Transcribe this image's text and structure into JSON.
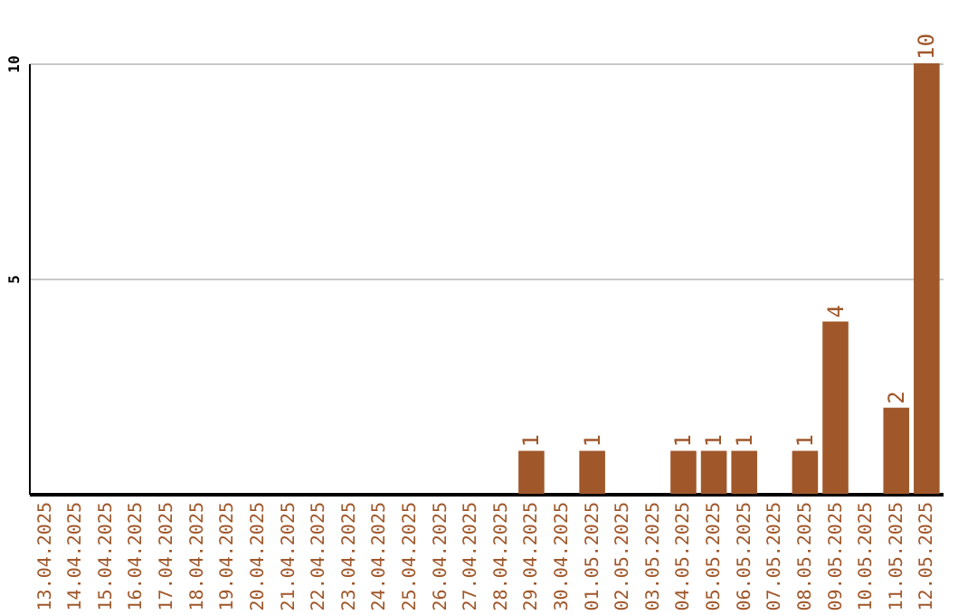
{
  "chart_data": {
    "type": "bar",
    "categories": [
      "13.04.2025",
      "14.04.2025",
      "15.04.2025",
      "16.04.2025",
      "17.04.2025",
      "18.04.2025",
      "19.04.2025",
      "20.04.2025",
      "21.04.2025",
      "22.04.2025",
      "23.04.2025",
      "24.04.2025",
      "25.04.2025",
      "26.04.2025",
      "27.04.2025",
      "28.04.2025",
      "29.04.2025",
      "30.04.2025",
      "01.05.2025",
      "02.05.2025",
      "03.05.2025",
      "04.05.2025",
      "05.05.2025",
      "06.05.2025",
      "07.05.2025",
      "08.05.2025",
      "09.05.2025",
      "10.05.2025",
      "11.05.2025",
      "12.05.2025"
    ],
    "values": [
      0,
      0,
      0,
      0,
      0,
      0,
      0,
      0,
      0,
      0,
      0,
      0,
      0,
      0,
      0,
      0,
      1,
      0,
      1,
      0,
      0,
      1,
      1,
      1,
      0,
      1,
      4,
      0,
      2,
      10
    ],
    "value_labels": [
      null,
      null,
      null,
      null,
      null,
      null,
      null,
      null,
      null,
      null,
      null,
      null,
      null,
      null,
      null,
      null,
      "1",
      null,
      "1",
      null,
      null,
      "1",
      "1",
      "1",
      null,
      "1",
      "4",
      null,
      "2",
      "10"
    ],
    "color": "#a0572a",
    "ylim": [
      0,
      10
    ],
    "yticks": [
      5,
      10
    ],
    "grid": "y"
  }
}
